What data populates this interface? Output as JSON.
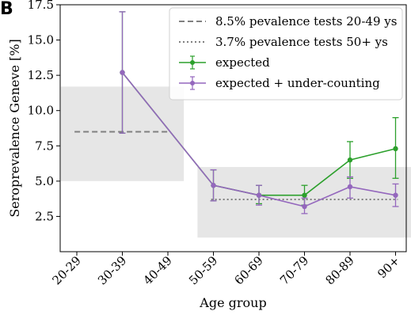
{
  "panel_letter": "B",
  "chart_data": {
    "type": "line",
    "xlabel": "Age group",
    "ylabel": "Seroprevalence Geneve [%]",
    "categories": [
      "20-29",
      "30-39",
      "40-49",
      "50-59",
      "60-69",
      "70-79",
      "80-89",
      "90+"
    ],
    "ylim": [
      0,
      17.5
    ],
    "yticks": [
      2.5,
      5.0,
      7.5,
      10.0,
      12.5,
      15.0,
      17.5
    ],
    "ytick_labels": [
      "2.5",
      "5.0",
      "7.5",
      "10.0",
      "12.5",
      "15.0",
      "17.5"
    ],
    "grid": false,
    "legend_position": "top-right",
    "bands": [
      {
        "x_from": "20-29",
        "x_to": "40-49",
        "y_low": 5.0,
        "y_high": 11.7,
        "color": "#e6e6e6"
      },
      {
        "x_from": "50-59",
        "x_to": "90+",
        "y_low": 1.0,
        "y_high": 6.0,
        "color": "#e6e6e6"
      }
    ],
    "reference_lines": [
      {
        "name": "8.5% pevalence tests 20-49 ys",
        "value": 8.5,
        "x_from": "20-29",
        "x_to": "40-49",
        "style": "dashed",
        "color": "#808080"
      },
      {
        "name": "3.7% pevalence tests 50+ ys",
        "value": 3.7,
        "x_from": "50-59",
        "x_to": "90+",
        "style": "dotted",
        "color": "#808080"
      }
    ],
    "series": [
      {
        "name": "expected",
        "color": "#2ca02c",
        "points": [
          {
            "x": "30-39",
            "y": 12.7,
            "err_low": 8.4,
            "err_high": 17.0
          },
          {
            "x": "50-59",
            "y": 4.7,
            "err_low": 3.6,
            "err_high": 5.8
          },
          {
            "x": "60-69",
            "y": 4.0,
            "err_low": 3.4,
            "err_high": 4.7
          },
          {
            "x": "70-79",
            "y": 4.0,
            "err_low": 3.3,
            "err_high": 4.7
          },
          {
            "x": "80-89",
            "y": 6.5,
            "err_low": 5.2,
            "err_high": 7.8
          },
          {
            "x": "90+",
            "y": 7.3,
            "err_low": 5.2,
            "err_high": 9.5
          }
        ]
      },
      {
        "name": "expected + under-counting",
        "color": "#9467bd",
        "points": [
          {
            "x": "30-39",
            "y": 12.7,
            "err_low": 8.4,
            "err_high": 17.0
          },
          {
            "x": "50-59",
            "y": 4.7,
            "err_low": 3.6,
            "err_high": 5.8
          },
          {
            "x": "60-69",
            "y": 4.0,
            "err_low": 3.3,
            "err_high": 4.7
          },
          {
            "x": "70-79",
            "y": 3.2,
            "err_low": 2.7,
            "err_high": 3.8
          },
          {
            "x": "80-89",
            "y": 4.6,
            "err_low": 3.8,
            "err_high": 5.3
          },
          {
            "x": "90+",
            "y": 4.0,
            "err_low": 3.2,
            "err_high": 4.8
          }
        ]
      }
    ]
  }
}
